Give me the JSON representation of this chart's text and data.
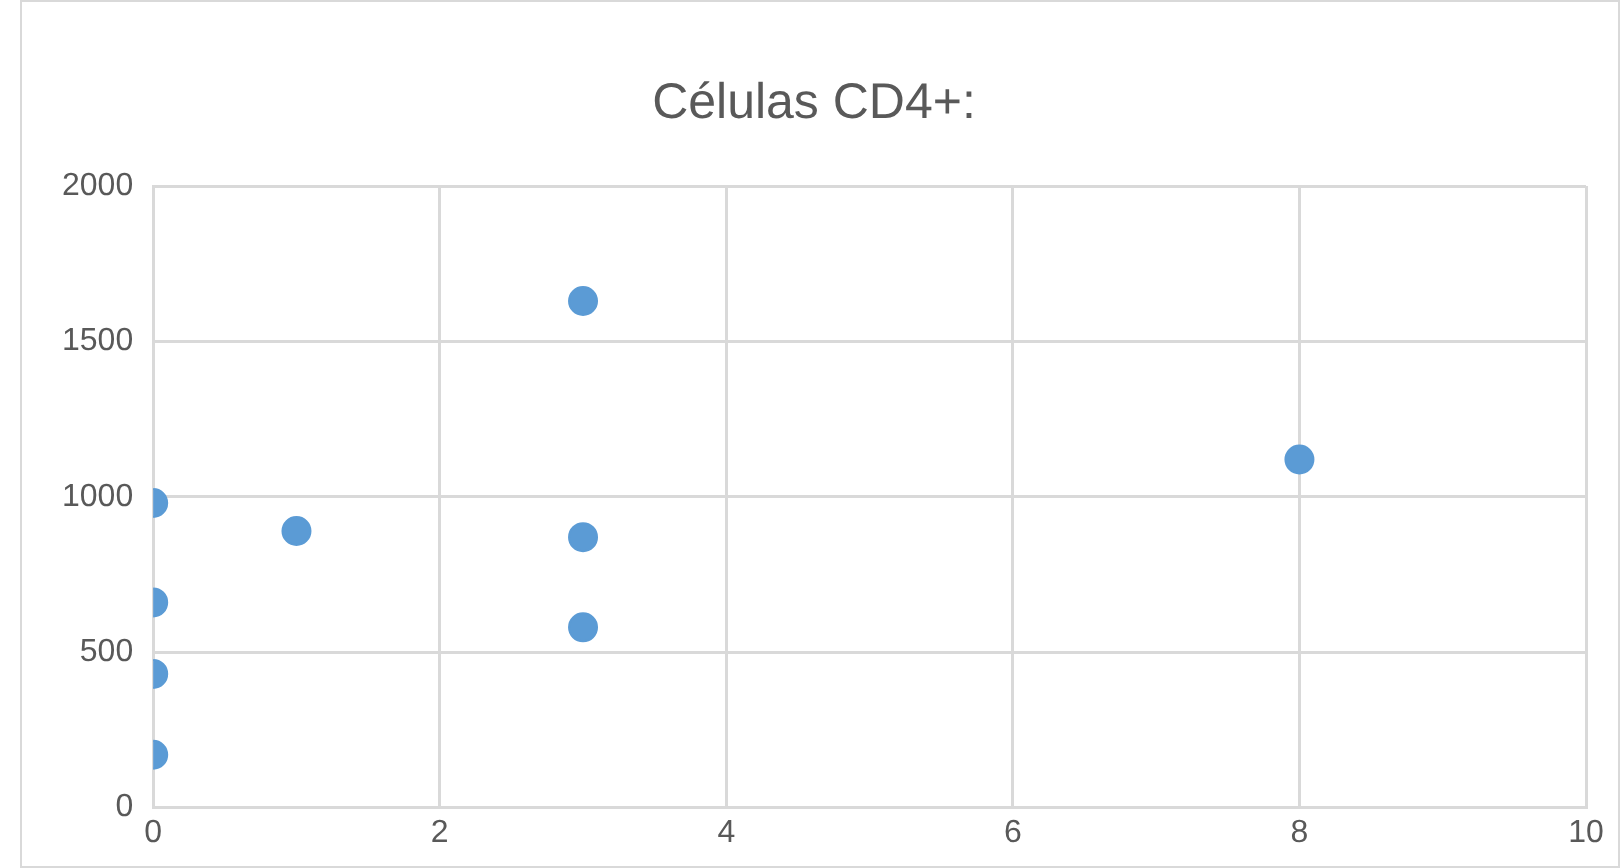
{
  "chart_data": {
    "type": "scatter",
    "title": "Células CD4+:",
    "x": [
      0,
      0,
      0,
      0,
      1,
      3,
      3,
      3,
      8
    ],
    "series": [
      {
        "color": "#5b9bd5",
        "values": [
          980,
          660,
          430,
          170,
          890,
          1630,
          870,
          580,
          1120
        ]
      }
    ],
    "xlim": [
      0,
      10
    ],
    "xticks": [
      0,
      2,
      4,
      6,
      8,
      10
    ],
    "ylim": [
      0,
      2000
    ],
    "yticks": [
      0,
      500,
      1000,
      1500,
      2000
    ],
    "grid": true,
    "legend": false,
    "marker": "circle"
  }
}
